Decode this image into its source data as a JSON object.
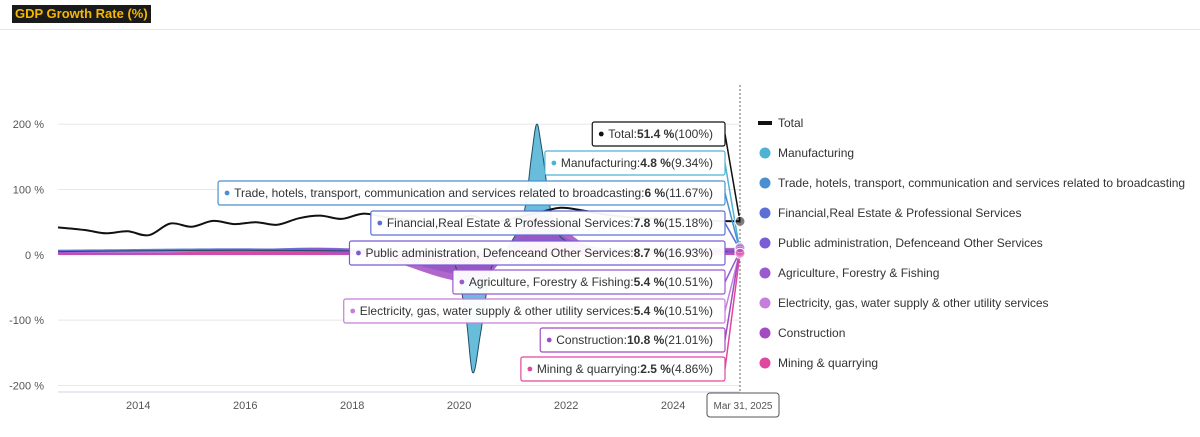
{
  "header": {
    "title": "GDP Growth Rate (%)"
  },
  "crosshair_label": "Mar 31, 2025",
  "chart_data": {
    "type": "area",
    "title": "GDP Growth Rate (%)",
    "xlabel": "",
    "ylabel": "",
    "xlim": [
      2012.5,
      2025.25
    ],
    "ylim": [
      -210,
      260
    ],
    "y_ticks": [
      {
        "value": 200,
        "label": "200 %"
      },
      {
        "value": 100,
        "label": "100 %"
      },
      {
        "value": 0,
        "label": "0 %"
      },
      {
        "value": -100,
        "label": "-100 %"
      },
      {
        "value": -200,
        "label": "-200 %"
      }
    ],
    "x_ticks": [
      {
        "value": 2014,
        "label": "2014"
      },
      {
        "value": 2016,
        "label": "2016"
      },
      {
        "value": 2018,
        "label": "2018"
      },
      {
        "value": 2020,
        "label": "2020"
      },
      {
        "value": 2022,
        "label": "2022"
      },
      {
        "value": 2024,
        "label": "2024"
      }
    ],
    "legend_position": "right",
    "series": [
      {
        "name": "Total",
        "color": "#111111",
        "type": "line",
        "points": [
          [
            2012.5,
            42
          ],
          [
            2013,
            38
          ],
          [
            2013.4,
            33
          ],
          [
            2013.8,
            36
          ],
          [
            2014.2,
            30
          ],
          [
            2014.6,
            48
          ],
          [
            2015,
            43
          ],
          [
            2015.4,
            52
          ],
          [
            2015.8,
            47
          ],
          [
            2016.2,
            50
          ],
          [
            2016.6,
            46
          ],
          [
            2017,
            56
          ],
          [
            2017.4,
            60
          ],
          [
            2017.8,
            55
          ],
          [
            2018.2,
            63
          ],
          [
            2018.6,
            58
          ],
          [
            2019,
            54
          ],
          [
            2019.4,
            50
          ],
          [
            2019.8,
            44
          ],
          [
            2020.2,
            60
          ],
          [
            2020.6,
            50
          ],
          [
            2021,
            56
          ],
          [
            2021.5,
            65
          ],
          [
            2021.9,
            72
          ],
          [
            2022.3,
            68
          ],
          [
            2022.7,
            62
          ],
          [
            2023.1,
            58
          ],
          [
            2023.5,
            56
          ],
          [
            2023.9,
            55
          ],
          [
            2024.3,
            54
          ],
          [
            2024.7,
            52
          ],
          [
            2025.25,
            51.4
          ]
        ]
      },
      {
        "name": "Manufacturing",
        "color": "#4eb3d3",
        "latest": 4.8,
        "latest_pct": "9.34",
        "points": [
          [
            2012.5,
            5
          ],
          [
            2014,
            6
          ],
          [
            2016,
            7
          ],
          [
            2018,
            6
          ],
          [
            2019,
            4
          ],
          [
            2019.8,
            0
          ],
          [
            2020.1,
            -80
          ],
          [
            2020.25,
            -180
          ],
          [
            2020.4,
            -120
          ],
          [
            2020.6,
            -20
          ],
          [
            2020.9,
            10
          ],
          [
            2021.2,
            60
          ],
          [
            2021.35,
            150
          ],
          [
            2021.45,
            200
          ],
          [
            2021.55,
            160
          ],
          [
            2021.8,
            40
          ],
          [
            2022.3,
            15
          ],
          [
            2023,
            8
          ],
          [
            2024,
            6
          ],
          [
            2025.25,
            4.8
          ]
        ]
      },
      {
        "name": "Trade, hotels, transport, communication and services related to broadcasting",
        "color": "#4a90d0",
        "latest": 6,
        "latest_pct": "11.67",
        "points": [
          [
            2012.5,
            7
          ],
          [
            2014,
            8
          ],
          [
            2016,
            9
          ],
          [
            2018,
            8
          ],
          [
            2020.3,
            -30
          ],
          [
            2021.4,
            40
          ],
          [
            2022.5,
            10
          ],
          [
            2024,
            7
          ],
          [
            2025.25,
            6
          ]
        ]
      },
      {
        "name": "Financial,Real Estate & Professional Services",
        "color": "#5b6fd6",
        "latest": 7.8,
        "latest_pct": "15.18",
        "points": [
          [
            2012.5,
            8
          ],
          [
            2014,
            9
          ],
          [
            2016,
            10
          ],
          [
            2018,
            8
          ],
          [
            2020.3,
            5
          ],
          [
            2021.4,
            12
          ],
          [
            2022.5,
            10
          ],
          [
            2024,
            8
          ],
          [
            2025.25,
            7.8
          ]
        ]
      },
      {
        "name": "Public administration, Defenceand Other Services",
        "color": "#7a5cd6",
        "latest": 8.7,
        "latest_pct": "16.93",
        "points": [
          [
            2012.5,
            6
          ],
          [
            2014,
            7
          ],
          [
            2016,
            9
          ],
          [
            2018,
            10
          ],
          [
            2020.3,
            -5
          ],
          [
            2021.4,
            15
          ],
          [
            2022.5,
            10
          ],
          [
            2024,
            9
          ],
          [
            2025.25,
            8.7
          ]
        ]
      },
      {
        "name": "Agriculture, Forestry & Fishing",
        "color": "#9b59d0",
        "latest": 5.4,
        "latest_pct": "10.51",
        "points": [
          [
            2012.5,
            3
          ],
          [
            2014,
            2
          ],
          [
            2016,
            5
          ],
          [
            2018,
            4
          ],
          [
            2020.3,
            3
          ],
          [
            2021.4,
            3
          ],
          [
            2022.5,
            4
          ],
          [
            2024,
            4
          ],
          [
            2025.25,
            5.4
          ]
        ]
      },
      {
        "name": "Electricity, gas, water supply & other utility services",
        "color": "#c77ddb",
        "latest": 5.4,
        "latest_pct": "10.51",
        "points": [
          [
            2012.5,
            5
          ],
          [
            2014,
            6
          ],
          [
            2016,
            7
          ],
          [
            2018,
            7
          ],
          [
            2020.3,
            -3
          ],
          [
            2021.4,
            8
          ],
          [
            2022.5,
            8
          ],
          [
            2024,
            6
          ],
          [
            2025.25,
            5.4
          ]
        ]
      },
      {
        "name": "Construction",
        "color": "#a24cc2",
        "latest": 10.8,
        "latest_pct": "21.01",
        "points": [
          [
            2012.5,
            4
          ],
          [
            2014,
            3
          ],
          [
            2016,
            4
          ],
          [
            2018,
            7
          ],
          [
            2020.3,
            -40
          ],
          [
            2021.4,
            60
          ],
          [
            2022.5,
            12
          ],
          [
            2024,
            10
          ],
          [
            2025.25,
            10.8
          ]
        ]
      },
      {
        "name": "Mining & quarrying",
        "color": "#e0479e",
        "latest": 2.5,
        "latest_pct": "4.86",
        "points": [
          [
            2012.5,
            2
          ],
          [
            2014,
            1
          ],
          [
            2016,
            8
          ],
          [
            2018,
            1
          ],
          [
            2020.3,
            -15
          ],
          [
            2021.4,
            20
          ],
          [
            2022.5,
            5
          ],
          [
            2024,
            3
          ],
          [
            2025.25,
            2.5
          ]
        ]
      }
    ],
    "tooltip": {
      "date": "Mar 31, 2025",
      "entries": [
        {
          "series": "Total",
          "name": "Total:",
          "value": "51.4 %",
          "pct": " (100%)",
          "color": "#111111"
        },
        {
          "series": "Manufacturing",
          "name": "Manufacturing:",
          "value": "4.8 %",
          "pct": " (9.34%)",
          "color": "#4eb3d3"
        },
        {
          "series": "Trade",
          "name": "Trade, hotels, transport, communication and services related to broadcasting:",
          "value": "6 %",
          "pct": " (11.67%)",
          "color": "#4a90d0"
        },
        {
          "series": "Financial",
          "name": "Financial,Real Estate & Professional Services:",
          "value": "7.8 %",
          "pct": " (15.18%)",
          "color": "#5b6fd6"
        },
        {
          "series": "Public",
          "name": "Public administration, Defenceand Other Services:",
          "value": "8.7 %",
          "pct": " (16.93%)",
          "color": "#7a5cd6"
        },
        {
          "series": "Agriculture",
          "name": "Agriculture, Forestry & Fishing:",
          "value": "5.4 %",
          "pct": " (10.51%)",
          "color": "#9b59d0"
        },
        {
          "series": "Electricity",
          "name": "Electricity, gas, water supply & other utility services:",
          "value": "5.4 %",
          "pct": " (10.51%)",
          "color": "#c77ddb"
        },
        {
          "series": "Construction",
          "name": "Construction:",
          "value": "10.8 %",
          "pct": " (21.01%)",
          "color": "#a24cc2"
        },
        {
          "series": "Mining",
          "name": "Mining & quarrying:",
          "value": "2.5 %",
          "pct": " (4.86%)",
          "color": "#e0479e"
        }
      ]
    }
  }
}
